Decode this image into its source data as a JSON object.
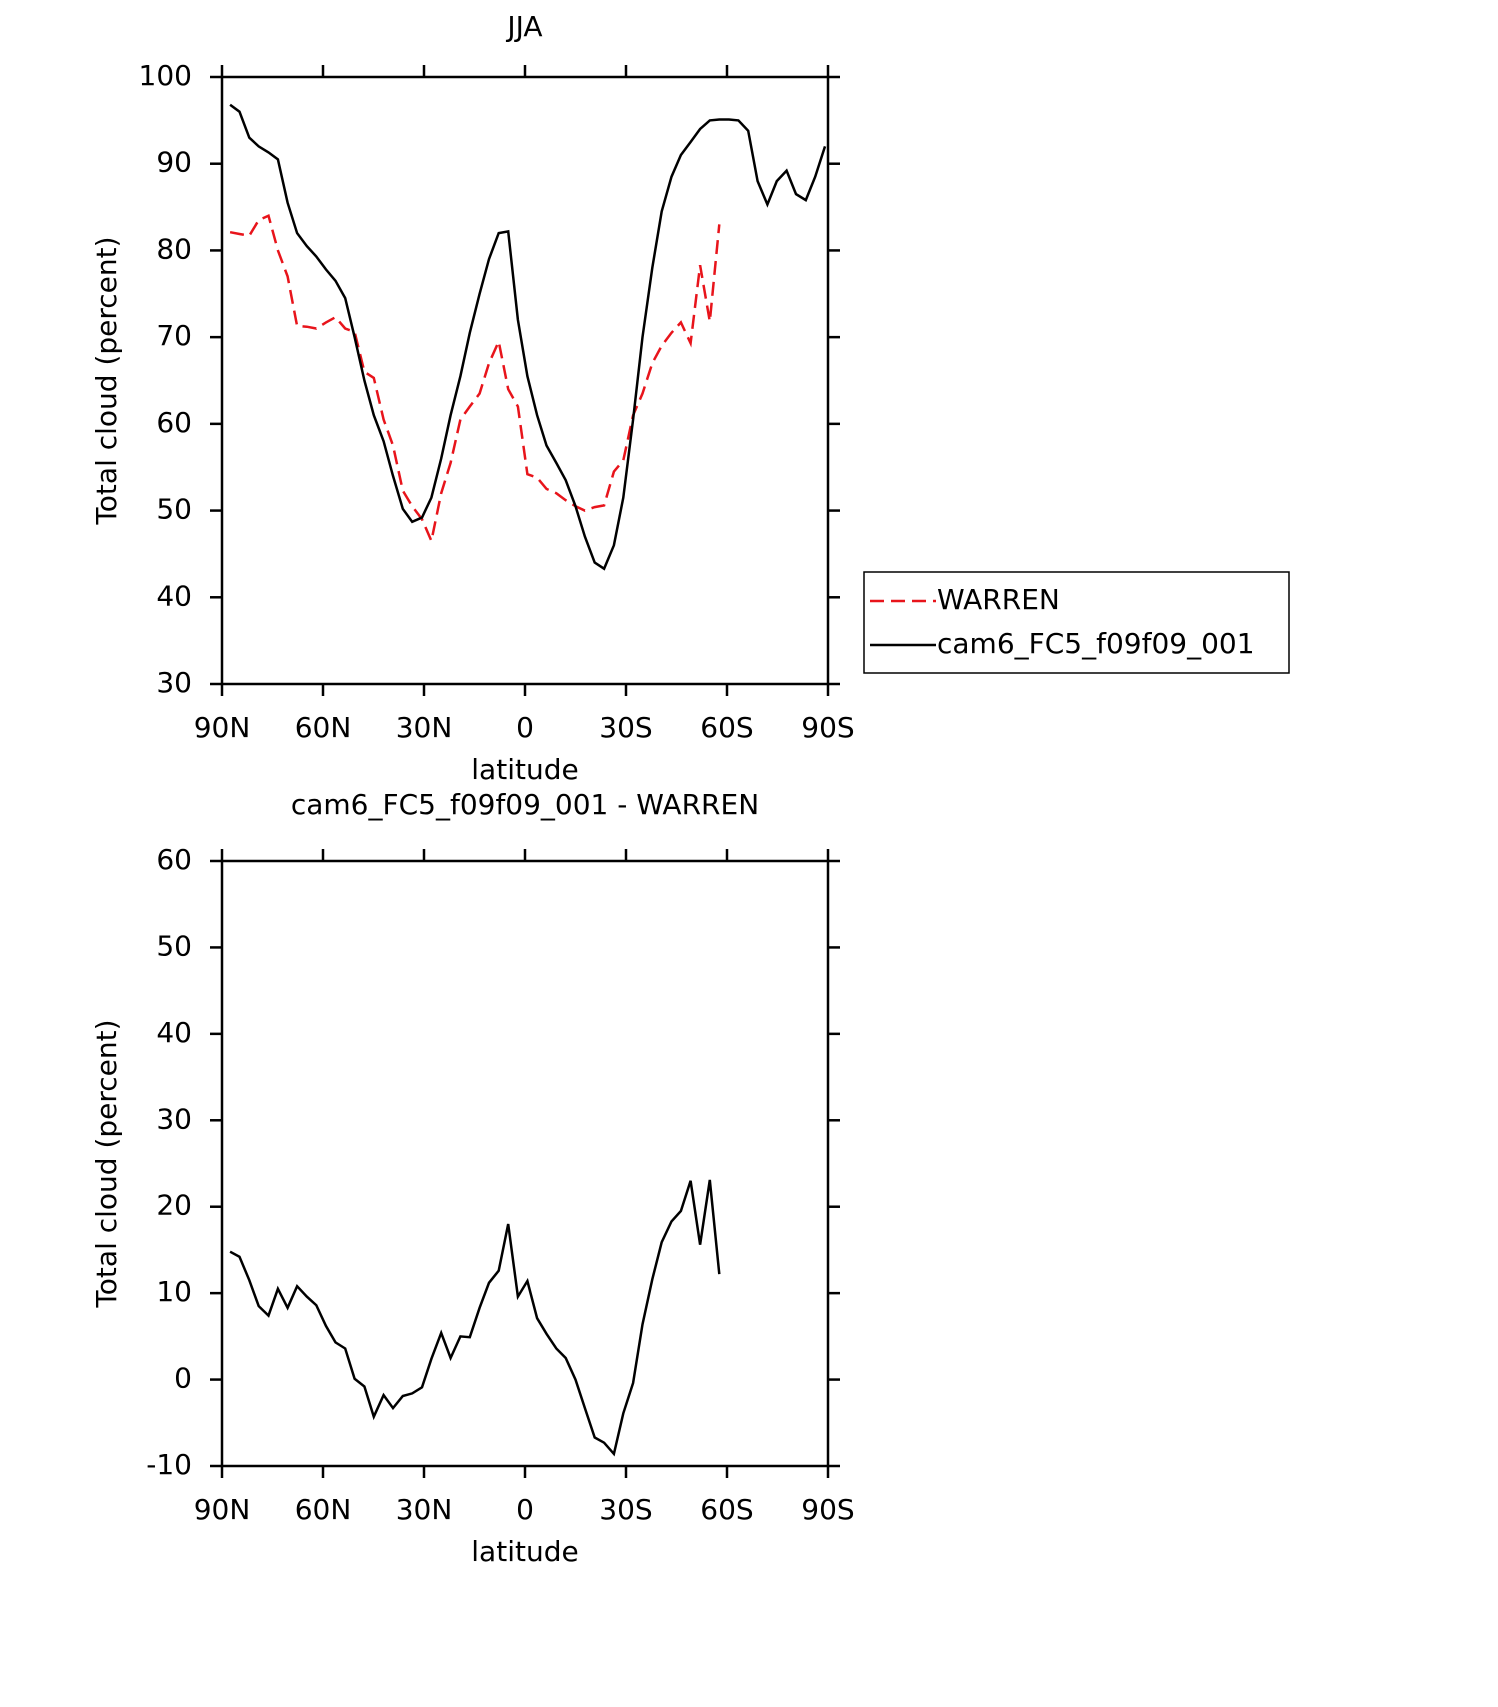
{
  "chart_data": [
    {
      "type": "line",
      "title": "JJA",
      "x_label": "latitude",
      "y_label": "Total cloud (percent)",
      "x": [
        87.6,
        84.8,
        81.9,
        79.1,
        76.2,
        73.4,
        70.5,
        67.7,
        64.8,
        62.0,
        59.1,
        56.3,
        53.4,
        50.6,
        47.7,
        44.9,
        42.0,
        39.2,
        36.3,
        33.5,
        30.6,
        27.8,
        24.9,
        22.1,
        19.2,
        16.4,
        13.5,
        10.7,
        7.8,
        5.0,
        2.1,
        -0.7,
        -3.6,
        -6.4,
        -9.3,
        -12.1,
        -15.0,
        -17.8,
        -20.7,
        -23.5,
        -26.4,
        -29.2,
        -32.1,
        -34.9,
        -37.8,
        -40.6,
        -43.5,
        -46.3,
        -49.2,
        -52.0,
        -54.9,
        -57.7,
        -60.6,
        -63.4,
        -66.3,
        -69.1,
        -72.0,
        -74.8,
        -77.7,
        -80.5,
        -83.4,
        -86.2,
        -89.1
      ],
      "series": [
        {
          "name": "WARREN",
          "color": "#e8141b",
          "line_style": "dashed",
          "values": [
            82.1,
            81.9,
            81.7,
            83.5,
            84,
            80,
            77,
            71.3,
            71.2,
            71,
            71.7,
            72.3,
            71,
            70.6,
            66,
            65.3,
            60.5,
            57.5,
            52.3,
            50.5,
            49,
            46.5,
            52,
            55.5,
            60.5,
            62,
            63.5,
            67,
            69.5,
            64,
            62,
            54.2,
            53.8,
            52.5,
            52,
            51.2,
            50.5,
            50,
            50.4,
            50.6,
            54.5,
            55.8,
            61,
            63.5,
            67,
            69,
            70.5,
            71.7,
            69.3,
            78.3,
            71.8,
            83,
            null,
            null,
            null,
            null,
            null,
            null,
            null,
            null,
            null,
            null,
            null
          ]
        },
        {
          "name": "cam6_FC5_f09f09_001",
          "color": "#000000",
          "line_style": "solid",
          "values": [
            96.8,
            96,
            93,
            92,
            91.3,
            90.5,
            85.5,
            82,
            80.5,
            79.3,
            77.8,
            76.5,
            74.5,
            70,
            65,
            61,
            58,
            54,
            50.2,
            48.7,
            49.2,
            51.5,
            56,
            61,
            65.5,
            70.5,
            75,
            79,
            82,
            82.2,
            72,
            65.5,
            61,
            57.5,
            55.5,
            53.5,
            50.5,
            47,
            44,
            43.3,
            46,
            51.5,
            60.5,
            70,
            78,
            84.5,
            88.5,
            91,
            92.5,
            94,
            95,
            95.1,
            95.1,
            95,
            93.8,
            88,
            85.3,
            88,
            89.2,
            86.5,
            85.8,
            88.5,
            92
          ]
        }
      ],
      "xlim": [
        90,
        -90
      ],
      "xticks": [
        {
          "value": 90,
          "label": "90N"
        },
        {
          "value": 60,
          "label": "60N"
        },
        {
          "value": 30,
          "label": "30N"
        },
        0,
        {
          "value": -30,
          "label": "30S"
        },
        {
          "value": -60,
          "label": "60S"
        },
        {
          "value": -90,
          "label": "90S"
        }
      ],
      "ylim": [
        30,
        100
      ],
      "yticks": [
        30,
        40,
        50,
        60,
        70,
        80,
        90,
        100
      ],
      "legend": "right"
    },
    {
      "type": "line",
      "title": "cam6_FC5_f09f09_001 - WARREN",
      "x_label": "latitude",
      "y_label": "Total cloud (percent)",
      "x": [
        87.6,
        84.8,
        81.9,
        79.1,
        76.2,
        73.4,
        70.5,
        67.7,
        64.8,
        62.0,
        59.1,
        56.3,
        53.4,
        50.6,
        47.7,
        44.9,
        42.0,
        39.2,
        36.3,
        33.5,
        30.6,
        27.8,
        24.9,
        22.1,
        19.2,
        16.4,
        13.5,
        10.7,
        7.8,
        5.0,
        2.1,
        -0.7,
        -3.6,
        -6.4,
        -9.3,
        -12.1,
        -15.0,
        -17.8,
        -20.7,
        -23.5,
        -26.4,
        -29.2,
        -32.1,
        -34.9,
        -37.8,
        -40.6,
        -43.5,
        -46.3,
        -49.2,
        -52.0,
        -54.9,
        -57.7,
        -60.6,
        -63.4,
        -66.3,
        -69.1,
        -72.0,
        -74.8,
        -77.7,
        -80.5,
        -83.4,
        -86.2,
        -89.1
      ],
      "series": [
        {
          "color": "#000000",
          "line_style": "solid",
          "values": [
            14.8,
            14.2,
            11.5,
            8.5,
            7.4,
            10.5,
            8.3,
            10.8,
            9.6,
            8.6,
            6.2,
            4.3,
            3.6,
            0.1,
            -0.8,
            -4.3,
            -1.8,
            -3.3,
            -1.9,
            -1.6,
            -0.9,
            2.4,
            5.4,
            2.5,
            5,
            4.9,
            8.3,
            11.2,
            12.6,
            18,
            9.6,
            11.4,
            7.1,
            5.3,
            3.6,
            2.5,
            0,
            -3.3,
            -6.7,
            -7.3,
            -8.6,
            -3.9,
            -0.4,
            6.4,
            11.6,
            15.9,
            18.3,
            19.5,
            23,
            15.6,
            23.1,
            12.2,
            null,
            null,
            null,
            null,
            null,
            null,
            null,
            null,
            null,
            null,
            null
          ]
        }
      ],
      "xlim": [
        90,
        -90
      ],
      "xticks": [
        {
          "value": 90,
          "label": "90N"
        },
        {
          "value": 60,
          "label": "60N"
        },
        {
          "value": 30,
          "label": "30N"
        },
        0,
        {
          "value": -30,
          "label": "30S"
        },
        {
          "value": -60,
          "label": "60S"
        },
        {
          "value": -90,
          "label": "90S"
        }
      ],
      "ylim": [
        -10,
        60
      ],
      "yticks": [
        -10,
        0,
        10,
        20,
        30,
        40,
        50,
        60
      ]
    }
  ]
}
